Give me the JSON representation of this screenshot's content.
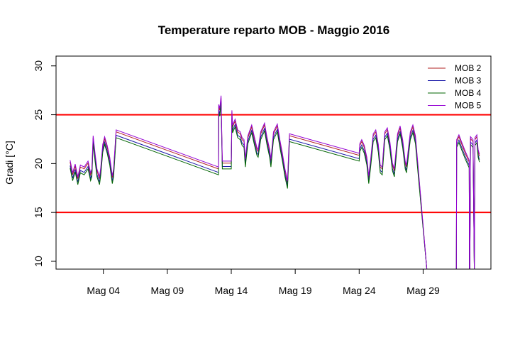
{
  "chart_data": {
    "type": "line",
    "title": "Temperature reparto MOB - Maggio 2016",
    "xlabel": "",
    "ylabel": "Gradi [°C]",
    "x_unit": "day of May 2016",
    "xlim": [
      0.3,
      34.3
    ],
    "ylim": [
      9.2,
      31.0
    ],
    "x_ticks": [
      {
        "label": "Mag 04",
        "value": 4
      },
      {
        "label": "Mag 09",
        "value": 9
      },
      {
        "label": "Mag 14",
        "value": 14
      },
      {
        "label": "Mag 19",
        "value": 19
      },
      {
        "label": "Mag 24",
        "value": 24
      },
      {
        "label": "Mag 29",
        "value": 29
      }
    ],
    "y_ticks": [
      {
        "label": "10",
        "value": 10
      },
      {
        "label": "15",
        "value": 15
      },
      {
        "label": "20",
        "value": 20
      },
      {
        "label": "25",
        "value": 25
      },
      {
        "label": "30",
        "value": 30
      }
    ],
    "reference_lines": [
      {
        "y": 25,
        "color": "#ff0000"
      },
      {
        "y": 15,
        "color": "#ff0000"
      }
    ],
    "grid": false,
    "legend_position": "top-right",
    "series": [
      {
        "name": "MOB 2",
        "color": "#b22222",
        "offset": 0.25
      },
      {
        "name": "MOB 3",
        "color": "#1a1aa8",
        "offset": -0.1
      },
      {
        "name": "MOB 4",
        "color": "#006400",
        "offset": -0.35
      },
      {
        "name": "MOB 5",
        "color": "#9400d3",
        "offset": 0.45
      }
    ],
    "base_profile": [
      [
        1.4,
        19.9
      ],
      [
        1.6,
        18.6
      ],
      [
        1.8,
        19.5
      ],
      [
        2.0,
        18.2
      ],
      [
        2.2,
        19.4
      ],
      [
        2.5,
        19.2
      ],
      [
        2.8,
        19.8
      ],
      [
        3.0,
        18.6
      ],
      [
        3.1,
        19.0
      ],
      [
        3.2,
        22.4
      ],
      [
        3.35,
        20.6
      ],
      [
        3.5,
        19.0
      ],
      [
        3.7,
        18.2
      ],
      [
        3.8,
        19.2
      ],
      [
        3.95,
        21.5
      ],
      [
        4.1,
        22.3
      ],
      [
        4.3,
        21.4
      ],
      [
        4.5,
        20.2
      ],
      [
        4.7,
        18.3
      ],
      [
        4.8,
        19.0
      ],
      [
        5.0,
        23.0
      ],
      [
        13.0,
        19.2
      ],
      [
        13.02,
        25.6
      ],
      [
        13.1,
        25.2
      ],
      [
        13.2,
        26.5
      ],
      [
        13.3,
        19.8
      ],
      [
        14.0,
        19.8
      ],
      [
        14.05,
        25.0
      ],
      [
        14.1,
        23.5
      ],
      [
        14.3,
        24.1
      ],
      [
        14.5,
        23.0
      ],
      [
        14.7,
        22.8
      ],
      [
        14.85,
        22.2
      ],
      [
        15.0,
        22.0
      ],
      [
        15.1,
        20.0
      ],
      [
        15.3,
        22.4
      ],
      [
        15.6,
        23.5
      ],
      [
        15.8,
        22.3
      ],
      [
        16.0,
        21.2
      ],
      [
        16.1,
        21.0
      ],
      [
        16.3,
        22.8
      ],
      [
        16.6,
        23.7
      ],
      [
        16.8,
        22.2
      ],
      [
        17.0,
        21.0
      ],
      [
        17.1,
        20.0
      ],
      [
        17.3,
        22.8
      ],
      [
        17.6,
        23.6
      ],
      [
        17.8,
        22.0
      ],
      [
        18.0,
        20.6
      ],
      [
        18.2,
        19.0
      ],
      [
        18.4,
        17.8
      ],
      [
        18.55,
        22.6
      ],
      [
        24.0,
        20.6
      ],
      [
        24.05,
        21.6
      ],
      [
        24.2,
        22.0
      ],
      [
        24.4,
        21.4
      ],
      [
        24.6,
        20.2
      ],
      [
        24.75,
        18.3
      ],
      [
        24.9,
        20.0
      ],
      [
        25.1,
        22.6
      ],
      [
        25.3,
        23.0
      ],
      [
        25.5,
        21.5
      ],
      [
        25.65,
        19.4
      ],
      [
        25.8,
        19.2
      ],
      [
        26.0,
        22.8
      ],
      [
        26.2,
        23.2
      ],
      [
        26.4,
        21.8
      ],
      [
        26.6,
        19.6
      ],
      [
        26.75,
        19.0
      ],
      [
        27.0,
        22.6
      ],
      [
        27.2,
        23.4
      ],
      [
        27.4,
        22.0
      ],
      [
        27.6,
        19.8
      ],
      [
        27.7,
        19.4
      ],
      [
        28.0,
        22.8
      ],
      [
        28.2,
        23.5
      ],
      [
        28.4,
        22.4
      ],
      [
        28.6,
        19.4
      ],
      [
        29.3,
        9.0
      ],
      null,
      [
        31.6,
        9.0
      ],
      [
        31.62,
        22.0
      ],
      [
        31.8,
        22.5
      ],
      [
        32.0,
        21.8
      ],
      [
        32.3,
        20.8
      ],
      [
        32.6,
        19.9
      ],
      [
        32.62,
        9.0
      ],
      [
        32.65,
        9.0
      ],
      [
        32.7,
        22.3
      ],
      [
        32.9,
        22.0
      ],
      [
        33.0,
        9.0
      ],
      [
        33.05,
        22.2
      ],
      [
        33.2,
        22.5
      ],
      [
        33.3,
        21.0
      ],
      [
        33.4,
        20.5
      ]
    ]
  }
}
